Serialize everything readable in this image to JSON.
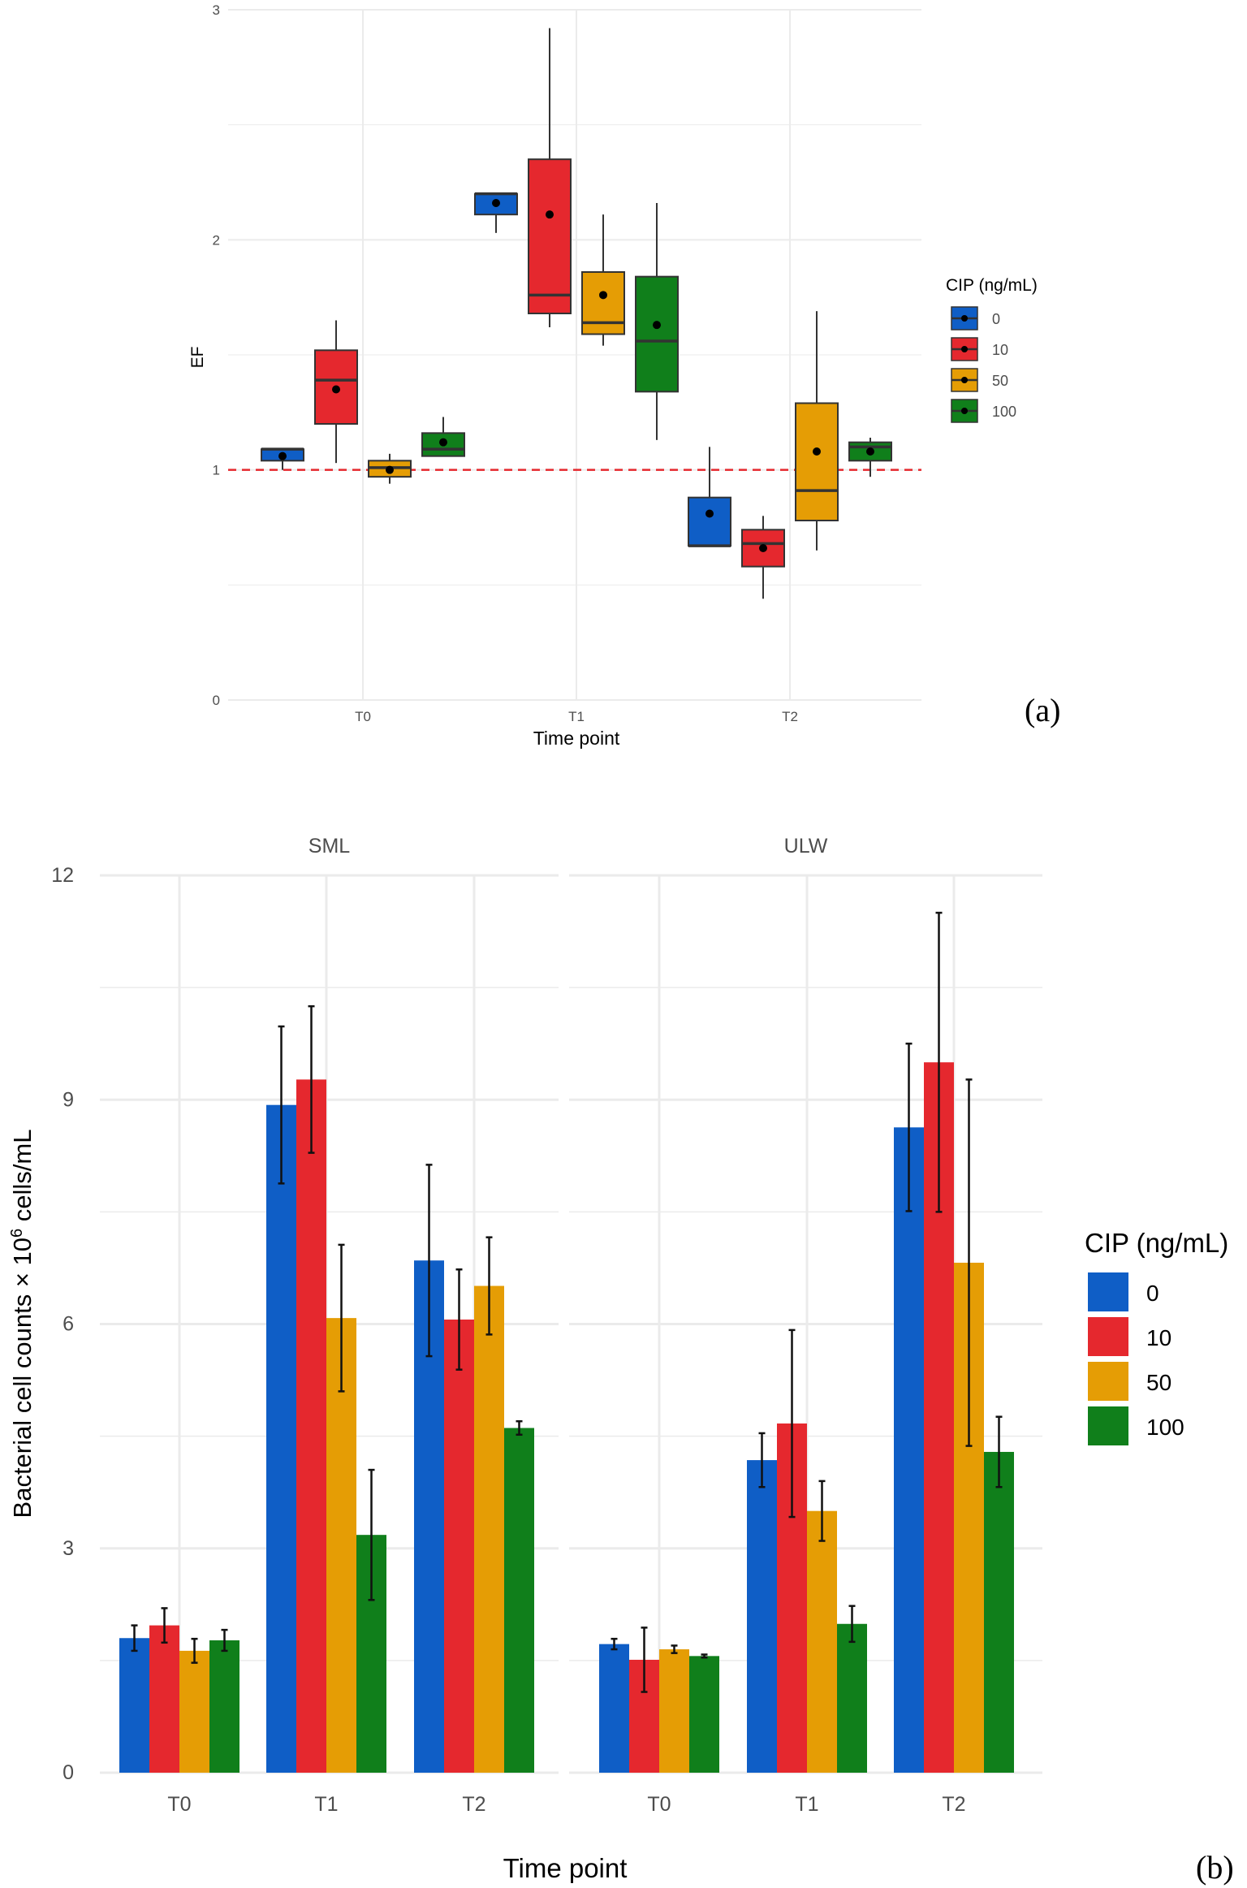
{
  "colors": {
    "0": "#0f5ec6",
    "10": "#e5282e",
    "50": "#e59d05",
    "100": "#107f1b",
    "ref": "#e5282e",
    "grid": "#ebebeb"
  },
  "chart_data": [
    {
      "type": "box",
      "panel_label": "(a)",
      "ylabel": "EF",
      "xlabel": "Time point",
      "categories": [
        "T0",
        "T1",
        "T2"
      ],
      "yticks": [
        "0",
        "1",
        "2",
        "3"
      ],
      "ylim": [
        0,
        3
      ],
      "reference_line": 1,
      "legend": {
        "title": "CIP (ng/mL)",
        "items": [
          "0",
          "10",
          "50",
          "100"
        ],
        "placement": "right"
      },
      "series": [
        {
          "name": "0",
          "boxes": [
            {
              "min": 1.0,
              "q1": 1.04,
              "median": 1.09,
              "q3": 1.09,
              "max": 1.09,
              "mean": 1.06
            },
            {
              "min": 2.03,
              "q1": 2.11,
              "median": 2.2,
              "q3": 2.2,
              "max": 2.2,
              "mean": 2.16
            },
            {
              "min": 0.67,
              "q1": 0.67,
              "median": 0.67,
              "q3": 0.88,
              "max": 1.1,
              "mean": 0.81
            }
          ]
        },
        {
          "name": "10",
          "boxes": [
            {
              "min": 1.03,
              "q1": 1.2,
              "median": 1.39,
              "q3": 1.52,
              "max": 1.65,
              "mean": 1.35
            },
            {
              "min": 1.62,
              "q1": 1.68,
              "median": 1.76,
              "q3": 2.35,
              "max": 2.92,
              "mean": 2.11
            },
            {
              "min": 0.44,
              "q1": 0.58,
              "median": 0.68,
              "q3": 0.74,
              "max": 0.8,
              "mean": 0.66
            }
          ]
        },
        {
          "name": "50",
          "boxes": [
            {
              "min": 0.94,
              "q1": 0.97,
              "median": 1.01,
              "q3": 1.04,
              "max": 1.07,
              "mean": 1.0
            },
            {
              "min": 1.54,
              "q1": 1.59,
              "median": 1.64,
              "q3": 1.86,
              "max": 2.11,
              "mean": 1.76
            },
            {
              "min": 0.65,
              "q1": 0.78,
              "median": 0.91,
              "q3": 1.29,
              "max": 1.69,
              "mean": 1.08
            }
          ]
        },
        {
          "name": "100",
          "boxes": [
            {
              "min": 1.06,
              "q1": 1.06,
              "median": 1.09,
              "q3": 1.16,
              "max": 1.23,
              "mean": 1.12
            },
            {
              "min": 1.13,
              "q1": 1.34,
              "median": 1.56,
              "q3": 1.84,
              "max": 2.16,
              "mean": 1.63
            },
            {
              "min": 0.97,
              "q1": 1.04,
              "median": 1.1,
              "q3": 1.12,
              "max": 1.14,
              "mean": 1.08
            }
          ]
        }
      ]
    },
    {
      "type": "bar",
      "panel_label": "(b)",
      "ylabel_main": "Bacterial cell counts × 10",
      "ylabel_sup": "6",
      "ylabel_unit": " cells/mL",
      "xlabel": "Time point",
      "facets": [
        "SML",
        "ULW"
      ],
      "categories": [
        "T0",
        "T1",
        "T2"
      ],
      "yticks": [
        "0",
        "3",
        "6",
        "9",
        "12"
      ],
      "ylim": [
        0,
        12
      ],
      "legend": {
        "title": "CIP (ng/mL)",
        "items": [
          "0",
          "10",
          "50",
          "100"
        ],
        "placement": "right"
      },
      "series": [
        {
          "name": "0",
          "SML": [
            1.8,
            8.93,
            6.85
          ],
          "SML_err": [
            0.17,
            1.05,
            1.28
          ],
          "ULW": [
            1.72,
            4.18,
            8.63
          ],
          "ULW_err": [
            0.07,
            0.36,
            1.12
          ]
        },
        {
          "name": "10",
          "SML": [
            1.97,
            9.27,
            6.06
          ],
          "SML_err": [
            0.23,
            0.98,
            0.67
          ],
          "ULW": [
            1.51,
            4.67,
            9.5
          ],
          "ULW_err": [
            0.43,
            1.25,
            2.0
          ]
        },
        {
          "name": "50",
          "SML": [
            1.63,
            6.08,
            6.51
          ],
          "SML_err": [
            0.16,
            0.98,
            0.65
          ],
          "ULW": [
            1.65,
            3.5,
            6.82
          ],
          "ULW_err": [
            0.05,
            0.4,
            2.45
          ]
        },
        {
          "name": "100",
          "SML": [
            1.77,
            3.18,
            4.61
          ],
          "SML_err": [
            0.14,
            0.87,
            0.09
          ],
          "ULW": [
            1.56,
            1.99,
            4.29
          ],
          "ULW_err": [
            0.02,
            0.24,
            0.47
          ]
        }
      ]
    }
  ]
}
